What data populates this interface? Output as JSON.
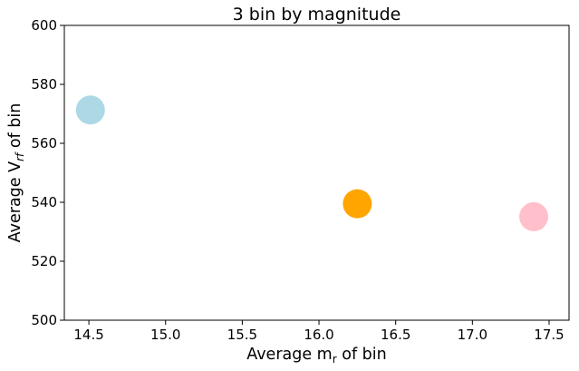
{
  "chart_data": {
    "type": "scatter",
    "title": "3 bin by magnitude",
    "xlabel": {
      "base": "Average m",
      "sub": "r",
      "rest": " of bin"
    },
    "ylabel": {
      "base": "Average V",
      "sub": "rf",
      "rest": " of bin"
    },
    "xlim": [
      14.34,
      17.63
    ],
    "ylim": [
      500,
      600
    ],
    "xticks": [
      "14.5",
      "15.0",
      "15.5",
      "16.0",
      "16.5",
      "17.0",
      "17.5"
    ],
    "yticks": [
      "500",
      "520",
      "540",
      "560",
      "580",
      "600"
    ],
    "grid": false,
    "points": [
      {
        "x": 14.51,
        "y": 571.3,
        "color": "#add8e6"
      },
      {
        "x": 16.25,
        "y": 539.5,
        "color": "#ffa500"
      },
      {
        "x": 17.4,
        "y": 535.1,
        "color": "#ffc0cb"
      }
    ]
  }
}
